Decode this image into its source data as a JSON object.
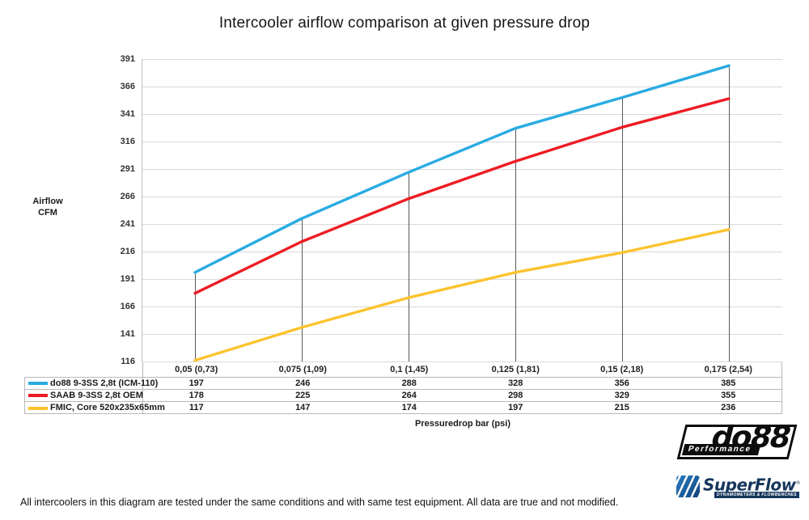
{
  "title": "Intercooler airflow comparison at given pressure drop",
  "y_axis": {
    "label_line1": "Airflow",
    "label_line2": "CFM",
    "ticks": [
      391,
      366,
      341,
      316,
      291,
      266,
      241,
      216,
      191,
      166,
      141,
      116
    ]
  },
  "x_axis": {
    "label": "Pressuredrop bar (psi)"
  },
  "chart_data": {
    "type": "line",
    "title": "Intercooler airflow comparison at given pressure drop",
    "categories": [
      "0,05 (0,73)",
      "0,075 (1,09)",
      "0,1 (1,45)",
      "0,125 (1,81)",
      "0,15 (2,18)",
      "0,175 (2,54)"
    ],
    "series": [
      {
        "name": "do88 9-3SS 2,8t (ICM-110)",
        "color": "#29ABE2",
        "values": [
          197,
          246,
          288,
          328,
          356,
          385
        ]
      },
      {
        "name": "SAAB 9-3SS 2,8t OEM",
        "color": "#ED1C24",
        "values": [
          178,
          225,
          264,
          298,
          329,
          355
        ]
      },
      {
        "name": "FMIC, Core 520x235x65mm",
        "color": "#FDC32E",
        "values": [
          117,
          147,
          174,
          197,
          215,
          236
        ]
      }
    ],
    "xlabel": "Pressuredrop bar (psi)",
    "ylabel": "Airflow CFM",
    "ylim": [
      116,
      391
    ],
    "ytick_step": 25,
    "grid": true,
    "drop_lines": true,
    "legend_position": "table-left"
  },
  "colors": {
    "gridline": "#d9d9d9",
    "axis_line": "#bfbfbf",
    "drop_line": "#595959",
    "table_border": "#b9b9b9"
  },
  "footer": "All intercoolers in this diagram are tested under the same conditions and with same test equipment. All data are true and not modified.",
  "logos": {
    "do88": {
      "name": "do88",
      "subtitle": "Performance"
    },
    "superflow": {
      "name": "SuperFlow",
      "trademark": "®",
      "tagline": "DYNAMOMETERS & FLOWBENCHES"
    }
  }
}
